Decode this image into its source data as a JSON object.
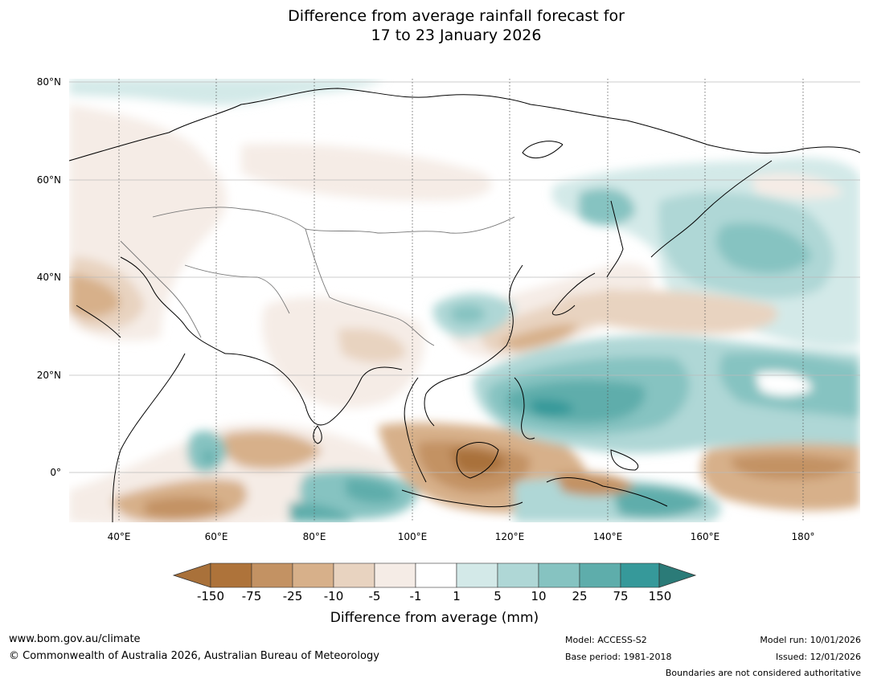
{
  "title": {
    "line1": "Difference from average rainfall forecast for",
    "line2": "17 to 23 January 2026"
  },
  "map": {
    "lat_labels": [
      "80°N",
      "60°N",
      "40°N",
      "20°N",
      "0°"
    ],
    "lon_labels": [
      "40°E",
      "60°E",
      "80°E",
      "100°E",
      "120°E",
      "140°E",
      "160°E",
      "180°"
    ]
  },
  "colorbar": {
    "title": "Difference from average (mm)",
    "ticks": [
      "-150",
      "-75",
      "-25",
      "-10",
      "-5",
      "-1",
      "1",
      "5",
      "10",
      "25",
      "75",
      "150"
    ],
    "colors": [
      "#a9713a",
      "#c39263",
      "#d7b08a",
      "#e8d3c0",
      "#f5ece6",
      "#ffffff",
      "#d3e9e8",
      "#afd7d6",
      "#86c3c1",
      "#5eadab",
      "#36999a",
      "#2b7b78"
    ]
  },
  "footer": {
    "website": "www.bom.gov.au/climate",
    "copyright": "© Commonwealth of Australia 2026, Australian Bureau of Meteorology",
    "model": "Model: ACCESS-S2",
    "base_period": "Base period: 1981-2018",
    "model_run": "Model run: 10/01/2026",
    "issued": "Issued: 12/01/2026",
    "disclaimer": "Boundaries are not considered authoritative"
  }
}
